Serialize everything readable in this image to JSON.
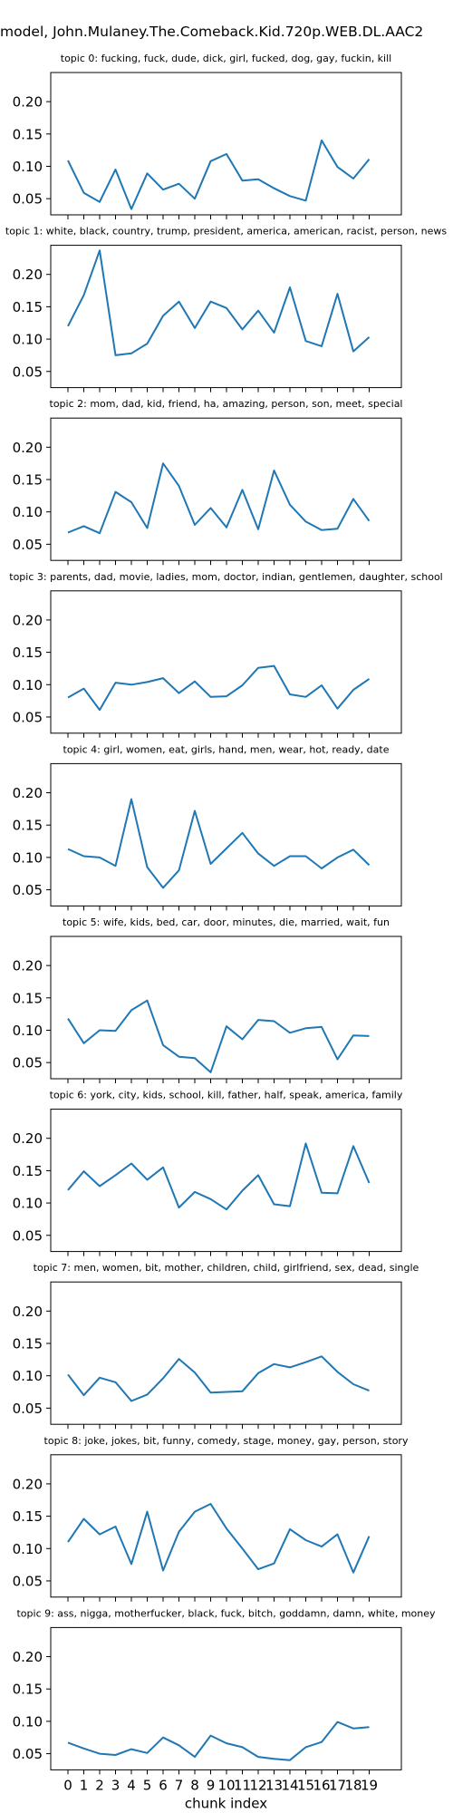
{
  "title": "model, John.Mulaney.The.Comeback.Kid.720p.WEB.DL.AAC2",
  "chart_data": {
    "type": "line",
    "xlabel": "chunk index",
    "x": [
      0,
      1,
      2,
      3,
      4,
      5,
      6,
      7,
      8,
      9,
      10,
      11,
      12,
      13,
      14,
      15,
      16,
      17,
      18,
      19
    ],
    "x_tick_labels": [
      "0",
      "1",
      "2",
      "3",
      "4",
      "5",
      "6",
      "7",
      "8",
      "9",
      "10",
      "11",
      "12",
      "13",
      "14",
      "15",
      "16",
      "17",
      "18",
      "19"
    ],
    "ylim": [
      0.025,
      0.245
    ],
    "yticks": [
      0.05,
      0.1,
      0.15,
      0.2
    ],
    "ytick_labels": [
      "0.05",
      "0.10",
      "0.15",
      "0.20"
    ],
    "line_color": "#1f77b4",
    "grid": false,
    "panels": [
      {
        "title": "topic 0: fucking, fuck, dude, dick, girl, fucked, dog, gay, fuckin, kill",
        "values": [
          0.109,
          0.059,
          0.045,
          0.095,
          0.034,
          0.089,
          0.064,
          0.073,
          0.05,
          0.108,
          0.119,
          0.078,
          0.08,
          0.066,
          0.054,
          0.047,
          0.14,
          0.099,
          0.081,
          0.111
        ]
      },
      {
        "title": "topic 1: white, black, country, trump, president, america, american, racist, person, news",
        "values": [
          0.12,
          0.168,
          0.237,
          0.075,
          0.078,
          0.093,
          0.136,
          0.158,
          0.117,
          0.158,
          0.148,
          0.115,
          0.144,
          0.11,
          0.18,
          0.097,
          0.089,
          0.17,
          0.081,
          0.103
        ]
      },
      {
        "title": "topic 2: mom, dad, kid, friend, ha, amazing, person, son, meet, special",
        "values": [
          0.068,
          0.078,
          0.067,
          0.131,
          0.115,
          0.075,
          0.175,
          0.14,
          0.08,
          0.106,
          0.076,
          0.134,
          0.073,
          0.164,
          0.111,
          0.085,
          0.072,
          0.074,
          0.12,
          0.086
        ]
      },
      {
        "title": "topic 3: parents, dad, movie, ladies, mom, doctor, indian, gentlemen, daughter, school",
        "values": [
          0.08,
          0.094,
          0.061,
          0.103,
          0.1,
          0.104,
          0.11,
          0.087,
          0.105,
          0.081,
          0.082,
          0.099,
          0.126,
          0.129,
          0.085,
          0.081,
          0.099,
          0.063,
          0.092,
          0.109
        ]
      },
      {
        "title": "topic 4: girl, women, eat, girls, hand, men, wear, hot, ready, date",
        "values": [
          0.113,
          0.102,
          0.1,
          0.087,
          0.19,
          0.085,
          0.053,
          0.08,
          0.172,
          0.09,
          0.114,
          0.138,
          0.106,
          0.087,
          0.102,
          0.102,
          0.083,
          0.1,
          0.112,
          0.088
        ]
      },
      {
        "title": "topic 5: wife, kids, bed, car, door, minutes, die, married, wait, fun",
        "values": [
          0.118,
          0.08,
          0.1,
          0.099,
          0.131,
          0.146,
          0.077,
          0.059,
          0.057,
          0.035,
          0.106,
          0.086,
          0.116,
          0.114,
          0.096,
          0.103,
          0.105,
          0.055,
          0.092,
          0.091
        ]
      },
      {
        "title": "topic 6: york, city, kids, school, kill, father, half, speak, america, family",
        "values": [
          0.12,
          0.149,
          0.126,
          0.143,
          0.161,
          0.136,
          0.155,
          0.093,
          0.117,
          0.106,
          0.09,
          0.119,
          0.143,
          0.098,
          0.095,
          0.192,
          0.116,
          0.115,
          0.188,
          0.131
        ]
      },
      {
        "title": "topic 7: men, women, bit, mother, children, child, girlfriend, sex, dead, single",
        "values": [
          0.102,
          0.07,
          0.097,
          0.09,
          0.061,
          0.071,
          0.096,
          0.126,
          0.105,
          0.074,
          0.075,
          0.076,
          0.104,
          0.118,
          0.113,
          0.121,
          0.13,
          0.106,
          0.087,
          0.077
        ]
      },
      {
        "title": "topic 8: joke, jokes, bit, funny, comedy, stage, money, gay, person, story",
        "values": [
          0.11,
          0.146,
          0.122,
          0.134,
          0.076,
          0.157,
          0.066,
          0.126,
          0.157,
          0.169,
          0.131,
          0.1,
          0.068,
          0.077,
          0.13,
          0.113,
          0.103,
          0.122,
          0.063,
          0.119
        ]
      },
      {
        "title": "topic 9: ass, nigga, motherfucker, black, fuck, bitch, goddamn, damn, white, money",
        "values": [
          0.067,
          0.058,
          0.05,
          0.048,
          0.057,
          0.051,
          0.075,
          0.063,
          0.045,
          0.078,
          0.066,
          0.06,
          0.045,
          0.042,
          0.04,
          0.06,
          0.068,
          0.099,
          0.089,
          0.091
        ]
      }
    ]
  }
}
